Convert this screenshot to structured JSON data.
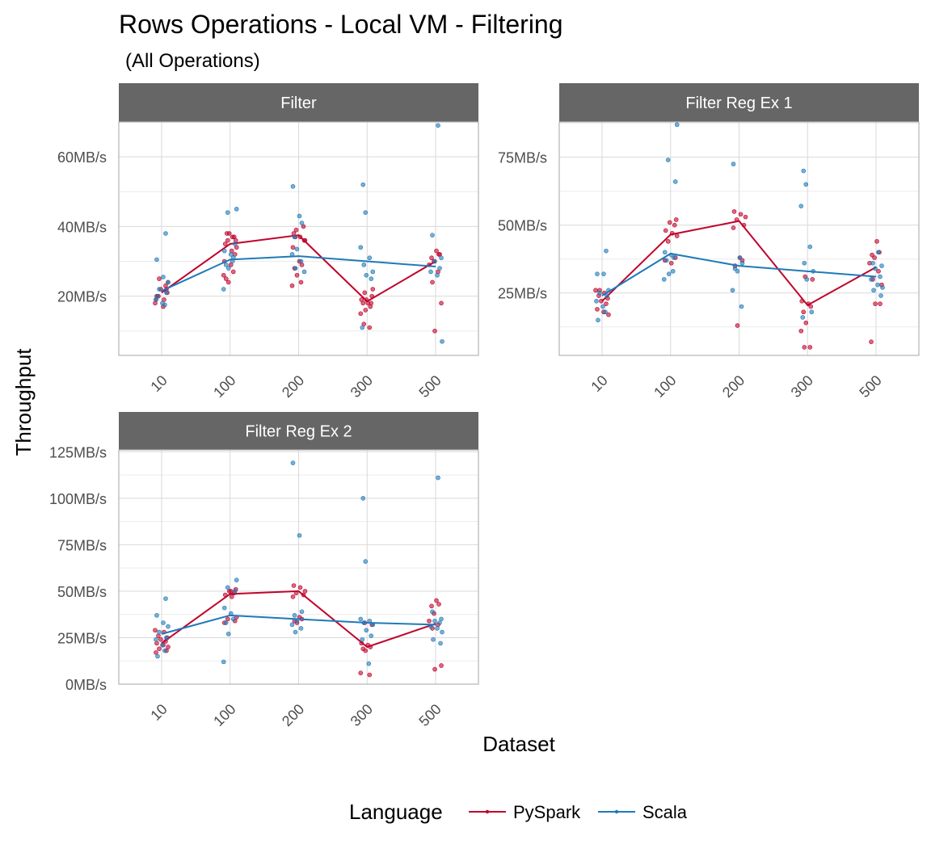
{
  "chart_data": {
    "type": "line",
    "title": "Rows Operations - Local VM - Filtering",
    "subtitle": "(All Operations)",
    "xlabel": "Dataset",
    "ylabel": "Throughput",
    "categories": [
      "10",
      "100",
      "200",
      "300",
      "500"
    ],
    "legend": {
      "title": "Language",
      "position": "bottom",
      "entries": [
        {
          "name": "PySpark",
          "color": "#c0032b"
        },
        {
          "name": "Scala",
          "color": "#1f7ab8"
        }
      ]
    },
    "panels": [
      {
        "title": "Filter",
        "ylim": [
          3,
          70
        ],
        "yticks": [
          20,
          40,
          60
        ],
        "ytick_labels": [
          "20MB/s",
          "40MB/s",
          "60MB/s"
        ],
        "series": [
          {
            "name": "PySpark",
            "line": [
              21,
              35,
              37.5,
              18.5,
              30
            ],
            "points": [
              [
                18,
                19,
                20,
                21,
                22,
                23,
                20,
                17,
                24,
                25,
                22,
                19
              ],
              [
                36,
                38,
                37,
                35,
                33,
                34,
                36,
                32,
                30,
                29,
                27,
                25,
                24,
                26,
                37,
                38
              ],
              [
                38,
                37,
                36,
                39,
                40,
                34,
                30,
                29,
                28,
                26,
                23,
                24,
                37,
                36
              ],
              [
                21,
                20,
                19,
                18,
                17,
                18,
                16,
                15,
                11,
                12,
                22,
                19,
                18
              ],
              [
                33,
                32,
                31,
                30,
                29,
                27,
                24,
                18,
                10,
                32
              ]
            ]
          },
          {
            "name": "Scala",
            "line": [
              21.5,
              30.5,
              31.5,
              30,
              28.5
            ],
            "points": [
              [
                38,
                30.5,
                25.5,
                24,
                22,
                21,
                19,
                18,
                17.5,
                20
              ],
              [
                45,
                44,
                35,
                33,
                32,
                31,
                29,
                28,
                22,
                30
              ],
              [
                51.5,
                43,
                41,
                37,
                33.5,
                32,
                30,
                28,
                27
              ],
              [
                52,
                44,
                34,
                31,
                29,
                27,
                26,
                25,
                11
              ],
              [
                69,
                37.5,
                31,
                30,
                28,
                27,
                26,
                7
              ]
            ]
          }
        ]
      },
      {
        "title": "Filter Reg Ex 1",
        "ylim": [
          2,
          88
        ],
        "yticks": [
          25,
          50,
          75
        ],
        "ytick_labels": [
          "25MB/s",
          "50MB/s",
          "75MB/s"
        ],
        "series": [
          {
            "name": "PySpark",
            "line": [
              22,
              46.5,
              51.5,
              20.5,
              34.5
            ],
            "points": [
              [
                26,
                25,
                24,
                23,
                22,
                21,
                19,
                18,
                17,
                26
              ],
              [
                52,
                51,
                50,
                48,
                47,
                46,
                44,
                38,
                37,
                36
              ],
              [
                55,
                54,
                53,
                52,
                50,
                49,
                38,
                37,
                35,
                13
              ],
              [
                31,
                30,
                22,
                21,
                20,
                18,
                14,
                11,
                5,
                5
              ],
              [
                44,
                40,
                39,
                38,
                36,
                33,
                30,
                28,
                21,
                21,
                7
              ]
            ]
          },
          {
            "name": "Scala",
            "line": [
              24,
              39.5,
              35,
              33,
              31
            ],
            "points": [
              [
                40.5,
                32,
                32,
                26,
                25,
                24,
                22,
                20,
                18,
                15
              ],
              [
                87,
                74,
                66,
                40,
                39,
                38,
                37,
                32,
                30,
                33
              ],
              [
                72.5,
                38,
                36,
                34,
                33,
                26,
                20
              ],
              [
                70,
                65,
                57,
                42,
                36,
                33,
                30,
                18,
                16
              ],
              [
                40,
                36,
                35,
                34,
                31,
                30,
                28,
                27,
                26,
                24
              ]
            ]
          }
        ]
      },
      {
        "title": "Filter Reg Ex 2",
        "ylim": [
          0,
          126
        ],
        "yticks": [
          0,
          25,
          50,
          75,
          100,
          125
        ],
        "ytick_labels": [
          "0MB/s",
          "25MB/s",
          "50MB/s",
          "75MB/s",
          "100MB/s",
          "125MB/s"
        ],
        "series": [
          {
            "name": "PySpark",
            "line": [
              22,
              48.5,
              50,
              20,
              32.5
            ],
            "points": [
              [
                29,
                28,
                26,
                25,
                24,
                23,
                22,
                21,
                20,
                19,
                18,
                17
              ],
              [
                51,
                50,
                49,
                48,
                47,
                36,
                35,
                34,
                33,
                50
              ],
              [
                53,
                52,
                50,
                49,
                48,
                47,
                36,
                35,
                34,
                33
              ],
              [
                33,
                32,
                22,
                21,
                20,
                19,
                18,
                6,
                5
              ],
              [
                45,
                43,
                42,
                38,
                34,
                32,
                30,
                10,
                8
              ]
            ]
          },
          {
            "name": "Scala",
            "line": [
              27,
              37,
              35,
              33,
              32
            ],
            "points": [
              [
                46,
                37,
                33,
                31,
                28,
                25,
                24,
                21,
                18,
                15
              ],
              [
                56,
                52,
                50,
                41,
                38,
                35,
                33,
                27,
                12
              ],
              [
                119,
                80,
                39,
                37,
                34,
                32,
                30,
                28
              ],
              [
                100,
                66,
                35,
                34,
                33,
                32,
                29,
                26,
                24,
                11
              ],
              [
                111,
                39,
                35,
                34,
                33,
                31,
                30,
                28,
                24,
                22
              ]
            ]
          }
        ]
      }
    ]
  }
}
